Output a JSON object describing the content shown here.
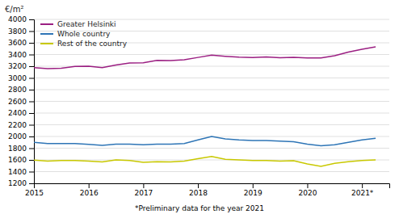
{
  "chart_data": {
    "type": "line",
    "y_label": "€/m²",
    "footnote": "*Preliminary data for the year 2021",
    "x": [
      2015.0,
      2015.25,
      2015.5,
      2015.75,
      2016.0,
      2016.25,
      2016.5,
      2016.75,
      2017.0,
      2017.25,
      2017.5,
      2017.75,
      2018.0,
      2018.25,
      2018.5,
      2018.75,
      2019.0,
      2019.25,
      2019.5,
      2019.75,
      2020.0,
      2020.25,
      2020.5,
      2020.75,
      2021.0,
      2021.25
    ],
    "series": [
      {
        "name": "Greater Helsinki",
        "color": "#9B1F82",
        "values": [
          3175,
          3160,
          3165,
          3195,
          3200,
          3175,
          3220,
          3255,
          3260,
          3300,
          3295,
          3310,
          3350,
          3390,
          3370,
          3355,
          3350,
          3360,
          3345,
          3350,
          3340,
          3340,
          3380,
          3440,
          3490,
          3530
        ]
      },
      {
        "name": "Whole country",
        "color": "#2E75B6",
        "values": [
          1900,
          1880,
          1880,
          1880,
          1865,
          1850,
          1870,
          1870,
          1860,
          1870,
          1870,
          1880,
          1940,
          2000,
          1960,
          1940,
          1930,
          1930,
          1920,
          1910,
          1870,
          1840,
          1860,
          1900,
          1940,
          1970
        ]
      },
      {
        "name": "Rest of the country",
        "color": "#C8C800",
        "values": [
          1595,
          1580,
          1590,
          1590,
          1580,
          1565,
          1600,
          1590,
          1560,
          1570,
          1565,
          1580,
          1620,
          1660,
          1610,
          1600,
          1590,
          1590,
          1580,
          1585,
          1530,
          1490,
          1540,
          1570,
          1590,
          1600
        ]
      }
    ],
    "xlim": [
      2015,
      2021.5
    ],
    "xticks": [
      2015,
      2016,
      2017,
      2018,
      2019,
      2020,
      {
        "value": 2021,
        "label": "2021*"
      }
    ],
    "ylim": [
      1200,
      4000
    ],
    "yticks": [
      1200,
      1400,
      1600,
      1800,
      2000,
      2200,
      2400,
      2600,
      2800,
      3000,
      3200,
      3400,
      3600,
      3800,
      4000
    ],
    "grid": true,
    "legend": "upper left"
  }
}
